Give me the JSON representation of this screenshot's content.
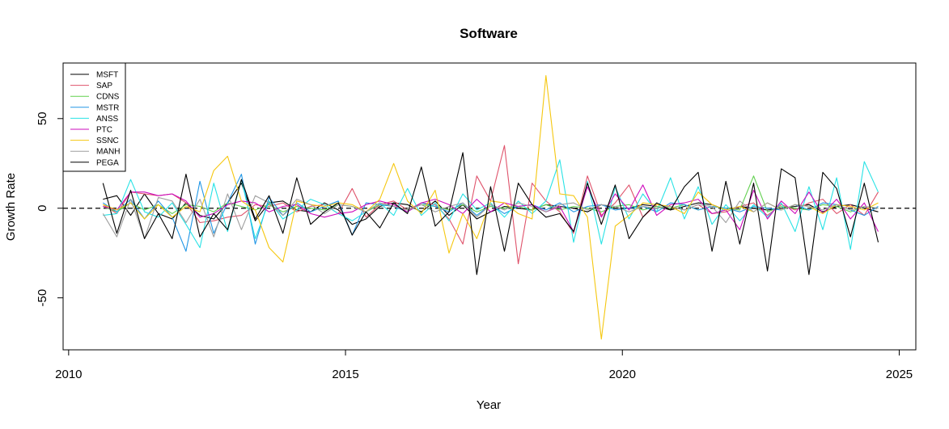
{
  "chart_data": {
    "type": "line",
    "title": "Software",
    "xlabel": "Year",
    "ylabel": "Growth Rate",
    "xlim": [
      2009.9,
      2025.3
    ],
    "ylim": [
      -79,
      81
    ],
    "x_ticks": [
      2010,
      2015,
      2020,
      2025
    ],
    "y_ticks": [
      50,
      0,
      -50
    ],
    "reference_line": {
      "y": 0,
      "style": "dashed"
    },
    "x": [
      2010.62,
      2010.87,
      2011.12,
      2011.37,
      2011.62,
      2011.87,
      2012.12,
      2012.37,
      2012.62,
      2012.87,
      2013.12,
      2013.37,
      2013.62,
      2013.87,
      2014.12,
      2014.37,
      2014.62,
      2014.87,
      2015.12,
      2015.37,
      2015.62,
      2015.87,
      2016.12,
      2016.37,
      2016.62,
      2016.87,
      2017.12,
      2017.37,
      2017.62,
      2017.87,
      2018.12,
      2018.37,
      2018.62,
      2018.87,
      2019.12,
      2019.37,
      2019.62,
      2019.87,
      2020.12,
      2020.37,
      2020.62,
      2020.87,
      2021.12,
      2021.37,
      2021.62,
      2021.87,
      2022.12,
      2022.37,
      2022.62,
      2022.87,
      2023.12,
      2023.37,
      2023.62,
      2023.87,
      2024.12,
      2024.37,
      2024.62
    ],
    "series": [
      {
        "name": "MSFT",
        "color": "#000000",
        "values": [
          5,
          7,
          -4,
          8,
          -3,
          -6,
          3,
          -4,
          -6,
          3,
          14,
          -7,
          3,
          4,
          -1,
          -2,
          3,
          -1,
          -9,
          -6,
          1,
          3,
          2,
          -2,
          4,
          -4,
          2,
          -6,
          -2,
          1,
          0,
          -1,
          2,
          1,
          0,
          -2,
          2,
          0,
          0,
          2,
          1,
          -1,
          1,
          3,
          2,
          -1,
          1,
          0,
          -1,
          0,
          1,
          2,
          -2,
          1,
          2,
          0,
          -2
        ]
      },
      {
        "name": "SAP",
        "color": "#DF536B",
        "values": [
          2,
          -3,
          9,
          8,
          7,
          8,
          3,
          -8,
          -7,
          -5,
          -4,
          2,
          1,
          3,
          -2,
          1,
          2,
          -3,
          11,
          -5,
          2,
          4,
          -1,
          3,
          2,
          -6,
          -20,
          18,
          4,
          35,
          -31,
          14,
          4,
          -2,
          -14,
          18,
          -4,
          3,
          13,
          -5,
          2,
          1,
          -1,
          2,
          -3,
          -2,
          1,
          3,
          -4,
          2,
          -1,
          3,
          5,
          -3,
          2,
          -4,
          9
        ]
      },
      {
        "name": "CDNS",
        "color": "#61D04F",
        "values": [
          1,
          -2,
          3,
          -1,
          2,
          -3,
          2,
          1,
          -2,
          3,
          1,
          -1,
          2,
          -2,
          1,
          0,
          -1,
          2,
          1,
          -2,
          2,
          1,
          -1,
          2,
          1,
          -1,
          2,
          -2,
          1,
          0,
          1,
          -1,
          2,
          -1,
          1,
          0,
          -2,
          1,
          2,
          -1,
          1,
          0,
          2,
          -1,
          1,
          0,
          -1,
          18,
          -2,
          1,
          0,
          -1,
          2,
          1,
          -2,
          1,
          0
        ]
      },
      {
        "name": "MSTR",
        "color": "#2297E6",
        "values": [
          3,
          -2,
          5,
          -6,
          4,
          -5,
          -24,
          15,
          -14,
          3,
          19,
          -20,
          6,
          -4,
          3,
          -2,
          1,
          4,
          -15,
          3,
          2,
          1,
          -2,
          3,
          1,
          -2,
          3,
          -4,
          2,
          -3,
          1,
          2,
          -1,
          3,
          -2,
          1,
          2,
          -1,
          0,
          1,
          -2,
          3,
          2,
          -1,
          1,
          0,
          -2,
          1,
          0,
          -1,
          2,
          -1,
          3,
          2,
          -1,
          -4,
          1
        ]
      },
      {
        "name": "ANSS",
        "color": "#28E2E5",
        "values": [
          -4,
          -3,
          16,
          -2,
          -5,
          3,
          -9,
          -22,
          14,
          -13,
          16,
          -17,
          4,
          -6,
          -1,
          5,
          2,
          -3,
          -7,
          -2,
          3,
          -4,
          11,
          -4,
          3,
          -7,
          8,
          -1,
          3,
          -5,
          4,
          -3,
          4,
          27,
          -19,
          15,
          -20,
          12,
          -6,
          8,
          -2,
          17,
          -6,
          12,
          -9,
          2,
          -7,
          2,
          -5,
          3,
          -13,
          12,
          -12,
          17,
          -23,
          26,
          9
        ]
      },
      {
        "name": "PTC",
        "color": "#CD0BBC",
        "values": [
          1,
          -1,
          9,
          9,
          7,
          8,
          4,
          -5,
          -3,
          2,
          4,
          3,
          -2,
          1,
          2,
          -3,
          -5,
          -3,
          -2,
          2,
          4,
          2,
          -2,
          3,
          5,
          2,
          -3,
          5,
          -2,
          3,
          1,
          2,
          -2,
          1,
          -13,
          12,
          -5,
          8,
          -1,
          13,
          -4,
          2,
          3,
          5,
          -3,
          -1,
          -12,
          10,
          -6,
          4,
          -3,
          9,
          -3,
          5,
          -6,
          3,
          -13
        ]
      },
      {
        "name": "SSNC",
        "color": "#F5C710",
        "values": [
          2,
          -1,
          3,
          -6,
          2,
          -5,
          1,
          -2,
          21,
          29,
          4,
          -1,
          -22,
          -30,
          4,
          2,
          1,
          3,
          2,
          -2,
          5,
          25,
          4,
          -3,
          10,
          -25,
          -3,
          -17,
          4,
          3,
          -3,
          -6,
          74,
          8,
          7,
          -5,
          -73,
          -10,
          -4,
          3,
          2,
          1,
          -3,
          9,
          2,
          -1,
          1,
          -2,
          3,
          -1,
          2,
          1,
          -3,
          2,
          1,
          -1,
          3
        ]
      },
      {
        "name": "MANH",
        "color": "#9E9E9E",
        "values": [
          -3,
          -16,
          5,
          -17,
          6,
          4,
          -8,
          5,
          -16,
          8,
          -12,
          7,
          3,
          -4,
          5,
          2,
          -3,
          2,
          1,
          -2,
          3,
          1,
          -1,
          2,
          -2,
          1,
          3,
          -5,
          2,
          -1,
          3,
          1,
          -2,
          2,
          3,
          -1,
          2,
          1,
          -2,
          1,
          0,
          1,
          -1,
          2,
          1,
          -8,
          4,
          -2,
          3,
          -1,
          2,
          1,
          -1,
          2,
          -1,
          1,
          0
        ]
      },
      {
        "name": "PEGA",
        "color": "#000000",
        "values": [
          14,
          -14,
          10,
          -17,
          -3,
          -17,
          19,
          -16,
          -3,
          -12,
          16,
          -6,
          7,
          -14,
          17,
          -9,
          -2,
          3,
          -15,
          -2,
          -11,
          3,
          -3,
          23,
          -10,
          -2,
          31,
          -37,
          12,
          -24,
          14,
          2,
          -5,
          -3,
          -13,
          14,
          -9,
          13,
          -17,
          -5,
          3,
          -1,
          12,
          20,
          -24,
          15,
          -20,
          14,
          -35,
          22,
          17,
          -37,
          20,
          11,
          -16,
          14,
          -19
        ]
      }
    ]
  }
}
